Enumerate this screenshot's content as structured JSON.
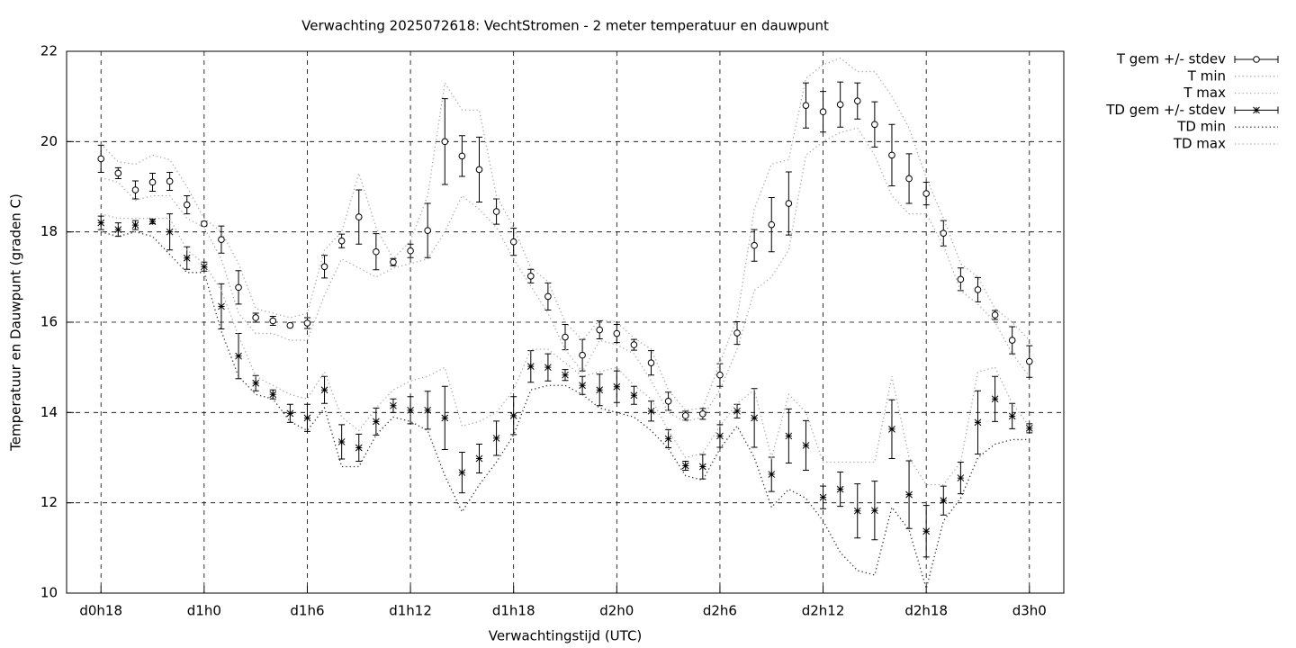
{
  "chart_data": {
    "type": "errorbar",
    "title": "Verwachting 2025072618: VechtStromen - 2 meter temperatuur en dauwpunt",
    "xlabel": "Verwachtingstijd (UTC)",
    "ylabel": "Temperatuur en Dauwpunt (graden C)",
    "x": [
      18,
      19,
      20,
      21,
      22,
      23,
      24,
      25,
      26,
      27,
      28,
      29,
      30,
      31,
      32,
      33,
      34,
      35,
      36,
      37,
      38,
      39,
      40,
      41,
      42,
      43,
      44,
      45,
      46,
      47,
      48,
      49,
      50,
      51,
      52,
      53,
      54,
      55,
      56,
      57,
      58,
      59,
      60,
      61,
      62,
      63,
      64,
      65,
      66,
      67,
      68,
      69,
      70,
      71,
      72
    ],
    "xlim": [
      16,
      74
    ],
    "xticks": [
      {
        "value": 18,
        "label": "d0h18"
      },
      {
        "value": 24,
        "label": "d1h0"
      },
      {
        "value": 30,
        "label": "d1h6"
      },
      {
        "value": 36,
        "label": "d1h12"
      },
      {
        "value": 42,
        "label": "d1h18"
      },
      {
        "value": 48,
        "label": "d2h0"
      },
      {
        "value": 54,
        "label": "d2h6"
      },
      {
        "value": 60,
        "label": "d2h12"
      },
      {
        "value": 66,
        "label": "d2h18"
      },
      {
        "value": 72,
        "label": "d3h0"
      }
    ],
    "ylim": [
      10,
      22
    ],
    "yticks": [
      10,
      12,
      14,
      16,
      18,
      20,
      22
    ],
    "grid": true,
    "legend": "outside-top-right",
    "series": [
      {
        "name": "T gem +/- stdev",
        "style": "errorbar",
        "marker": "circle",
        "color": "#000000",
        "values": [
          19.62,
          19.3,
          18.93,
          19.1,
          19.12,
          18.6,
          18.18,
          17.83,
          16.77,
          16.1,
          16.03,
          15.93,
          15.98,
          17.23,
          17.8,
          18.33,
          17.56,
          17.33,
          17.58,
          18.03,
          20.0,
          19.68,
          19.38,
          18.45,
          17.78,
          17.02,
          16.57,
          15.67,
          15.27,
          15.83,
          15.75,
          15.5,
          15.1,
          14.25,
          13.93,
          13.97,
          14.83,
          15.76,
          17.7,
          18.16,
          18.63,
          20.8,
          20.66,
          20.82,
          20.9,
          20.38,
          19.7,
          19.18,
          18.85,
          17.97,
          16.95,
          16.72,
          16.16,
          15.6,
          15.13
        ],
        "errors": [
          0.3,
          0.12,
          0.2,
          0.2,
          0.2,
          0.2,
          0.05,
          0.3,
          0.37,
          0.1,
          0.1,
          0.03,
          0.12,
          0.25,
          0.15,
          0.6,
          0.4,
          0.08,
          0.15,
          0.6,
          0.95,
          0.45,
          0.72,
          0.28,
          0.3,
          0.15,
          0.3,
          0.28,
          0.35,
          0.2,
          0.2,
          0.12,
          0.27,
          0.2,
          0.1,
          0.12,
          0.25,
          0.25,
          0.35,
          0.6,
          0.7,
          0.5,
          0.45,
          0.5,
          0.4,
          0.5,
          0.68,
          0.55,
          0.25,
          0.28,
          0.25,
          0.27,
          0.1,
          0.3,
          0.35
        ]
      },
      {
        "name": "T min",
        "style": "dotted",
        "color": "#aaaaaa",
        "values": [
          19.2,
          19.1,
          18.7,
          18.8,
          18.8,
          18.3,
          18.1,
          17.4,
          16.2,
          15.75,
          15.75,
          15.6,
          15.6,
          16.6,
          17.4,
          17.2,
          17.0,
          17.2,
          17.3,
          17.4,
          18.0,
          18.8,
          18.5,
          18.1,
          17.4,
          16.8,
          16.2,
          15.4,
          14.9,
          15.6,
          15.5,
          15.3,
          14.7,
          14.0,
          13.8,
          13.9,
          14.5,
          15.4,
          16.7,
          17.0,
          17.6,
          19.7,
          20.0,
          20.2,
          20.3,
          19.7,
          18.8,
          18.4,
          18.4,
          17.7,
          16.7,
          16.4,
          16.0,
          15.3,
          14.8
        ]
      },
      {
        "name": "T max",
        "style": "dotted",
        "color": "#aaaaaa",
        "values": [
          19.95,
          19.55,
          19.5,
          19.7,
          19.6,
          19.0,
          18.3,
          18.0,
          17.3,
          16.3,
          16.2,
          16.1,
          16.2,
          17.6,
          18.0,
          19.3,
          18.1,
          17.4,
          17.8,
          18.8,
          21.3,
          20.7,
          20.7,
          18.8,
          18.1,
          17.2,
          16.9,
          16.0,
          15.6,
          16.05,
          16.0,
          15.65,
          15.4,
          14.5,
          14.05,
          14.1,
          15.1,
          16.1,
          18.5,
          19.5,
          19.6,
          21.4,
          21.7,
          21.85,
          21.55,
          21.55,
          21.0,
          20.3,
          19.2,
          18.3,
          17.3,
          17.0,
          16.3,
          16.0,
          15.6
        ]
      },
      {
        "name": "TD gem +/- stdev",
        "style": "errorbar",
        "marker": "asterisk",
        "color": "#000000",
        "values": [
          18.2,
          18.05,
          18.15,
          18.23,
          18.0,
          17.42,
          17.23,
          16.35,
          15.25,
          14.65,
          14.4,
          13.98,
          13.88,
          14.5,
          13.35,
          13.22,
          13.8,
          14.15,
          14.05,
          14.05,
          13.88,
          12.67,
          12.98,
          13.43,
          13.93,
          15.02,
          15.0,
          14.83,
          14.6,
          14.5,
          14.57,
          14.38,
          14.03,
          13.42,
          12.82,
          12.8,
          13.48,
          14.03,
          13.88,
          12.63,
          13.48,
          13.27,
          12.12,
          12.3,
          11.82,
          11.83,
          13.63,
          12.18,
          11.37,
          12.05,
          12.55,
          13.78,
          14.3,
          13.92,
          13.65
        ],
        "errors": [
          0.15,
          0.15,
          0.1,
          0.05,
          0.4,
          0.25,
          0.1,
          0.5,
          0.5,
          0.17,
          0.1,
          0.2,
          0.3,
          0.3,
          0.38,
          0.3,
          0.3,
          0.15,
          0.3,
          0.42,
          0.7,
          0.45,
          0.32,
          0.38,
          0.42,
          0.35,
          0.3,
          0.12,
          0.2,
          0.35,
          0.35,
          0.2,
          0.22,
          0.2,
          0.1,
          0.27,
          0.25,
          0.15,
          0.65,
          0.38,
          0.6,
          0.55,
          0.25,
          0.38,
          0.6,
          0.65,
          0.65,
          0.75,
          0.57,
          0.32,
          0.35,
          0.7,
          0.5,
          0.28,
          0.1
        ]
      },
      {
        "name": "TD min",
        "style": "dotted",
        "color": "#333333",
        "values": [
          18.0,
          17.9,
          18.0,
          17.9,
          17.5,
          17.1,
          17.1,
          15.8,
          14.8,
          14.4,
          14.3,
          13.8,
          13.6,
          14.1,
          12.8,
          12.8,
          13.5,
          13.9,
          13.8,
          13.6,
          12.6,
          11.8,
          12.4,
          12.9,
          13.5,
          14.5,
          14.6,
          14.6,
          14.4,
          14.1,
          14.0,
          13.9,
          13.6,
          13.2,
          12.6,
          12.5,
          13.2,
          13.7,
          13.0,
          11.9,
          12.3,
          12.1,
          11.6,
          10.9,
          10.5,
          10.4,
          11.9,
          11.4,
          10.1,
          11.6,
          12.1,
          13.0,
          13.3,
          13.4,
          13.4
        ]
      },
      {
        "name": "TD max",
        "style": "dotted",
        "color": "#aaaaaa",
        "values": [
          18.4,
          18.3,
          18.3,
          18.3,
          18.3,
          17.6,
          17.3,
          16.7,
          15.7,
          14.8,
          14.6,
          14.4,
          14.3,
          14.9,
          13.9,
          13.6,
          14.1,
          14.5,
          14.7,
          14.8,
          15.0,
          13.7,
          13.8,
          14.0,
          14.5,
          15.4,
          15.4,
          15.1,
          14.8,
          14.9,
          15.0,
          14.6,
          14.3,
          13.6,
          13.0,
          13.1,
          13.7,
          14.2,
          14.5,
          13.0,
          14.4,
          14.0,
          12.9,
          12.9,
          12.9,
          12.9,
          14.8,
          13.0,
          12.4,
          12.4,
          12.9,
          14.9,
          15.0,
          14.2,
          13.7
        ]
      }
    ]
  }
}
